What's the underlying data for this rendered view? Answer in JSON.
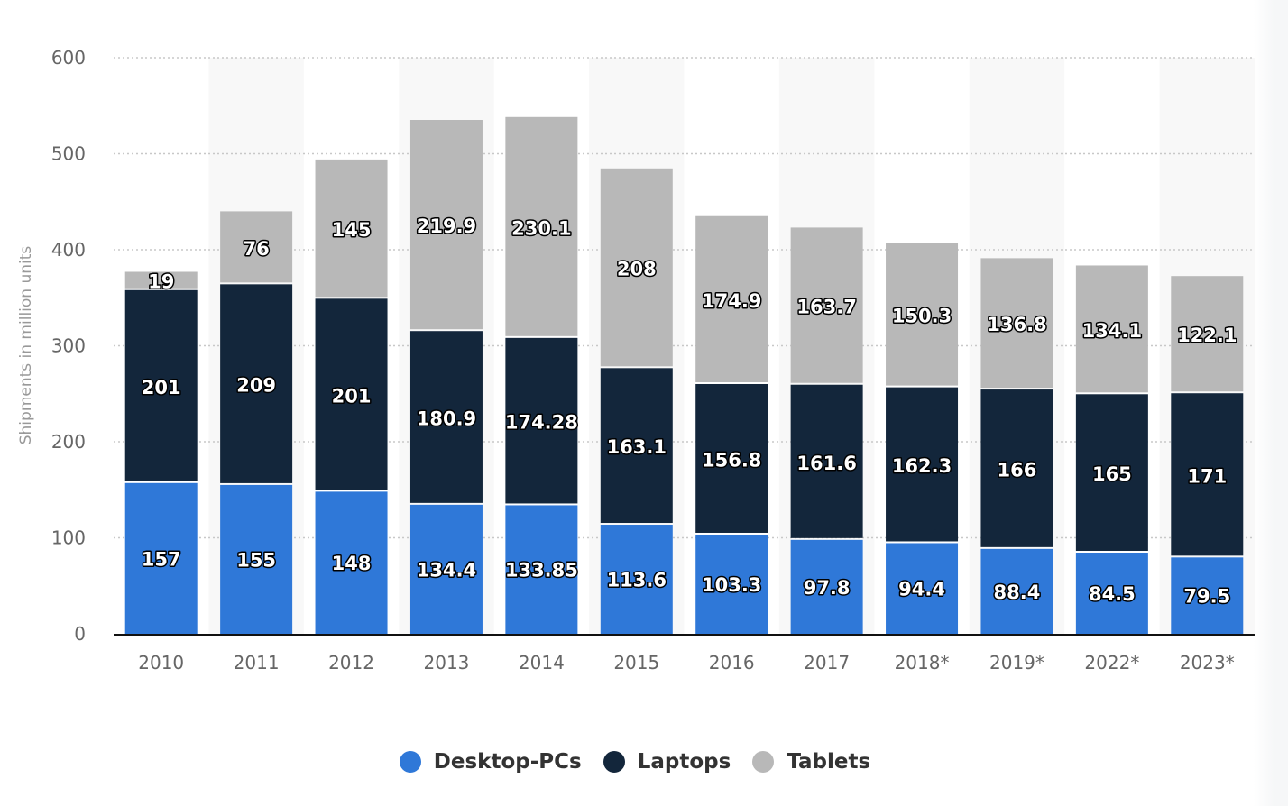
{
  "chart_data": {
    "type": "bar",
    "stacked": true,
    "title": "",
    "xlabel": "",
    "ylabel": "Shipments in million units",
    "ylim": [
      0,
      600
    ],
    "yticks": [
      0,
      100,
      200,
      300,
      400,
      500,
      600
    ],
    "grid": true,
    "legend_position": "bottom-center",
    "categories": [
      "2010",
      "2011",
      "2012",
      "2013",
      "2014",
      "2015",
      "2016",
      "2017",
      "2018*",
      "2019*",
      "2022*",
      "2023*"
    ],
    "series": [
      {
        "name": "Desktop-PCs",
        "color": "#2f78d8",
        "values": [
          157,
          155,
          148,
          134.4,
          133.85,
          113.6,
          103.3,
          97.8,
          94.4,
          88.4,
          84.5,
          79.5
        ],
        "labels": [
          "157",
          "155",
          "148",
          "134.4",
          "133.85",
          "113.6",
          "103.3",
          "97.8",
          "94.4",
          "88.4",
          "84.5",
          "79.5"
        ]
      },
      {
        "name": "Laptops",
        "color": "#13263b",
        "values": [
          201,
          209,
          201,
          180.9,
          174.28,
          163.1,
          156.8,
          161.6,
          162.3,
          166,
          165,
          171
        ],
        "labels": [
          "201",
          "209",
          "201",
          "180.9",
          "174.28",
          "163.1",
          "156.8",
          "161.6",
          "162.3",
          "166",
          "165",
          "171"
        ]
      },
      {
        "name": "Tablets",
        "color": "#b8b8b8",
        "values": [
          19,
          76,
          145,
          219.9,
          230.1,
          208,
          174.9,
          163.7,
          150.3,
          136.8,
          134.1,
          122.1
        ],
        "labels": [
          "19",
          "76",
          "145",
          "219.9",
          "230.1",
          "208",
          "174.9",
          "163.7",
          "150.3",
          "136.8",
          "134.1",
          "122.1"
        ]
      }
    ]
  },
  "colors": {
    "band": "#f8f8f8",
    "grid": "#c8c8c8",
    "axis": "#111111"
  }
}
